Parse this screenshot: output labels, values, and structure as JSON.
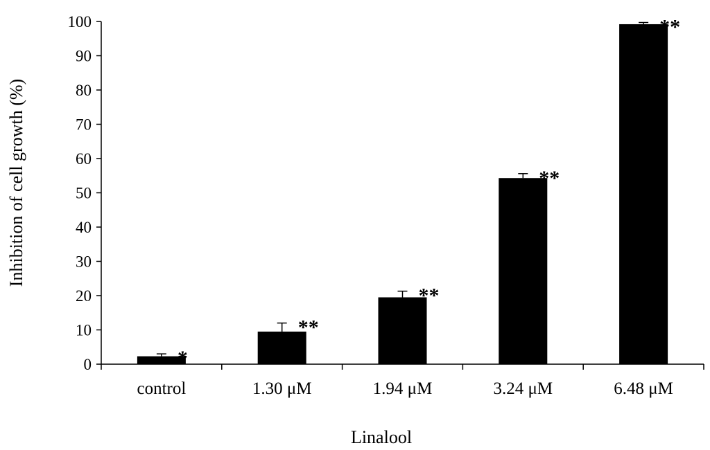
{
  "chart_data": {
    "type": "bar",
    "title": "",
    "xlabel": "Linalool",
    "ylabel": "Inhibition of cell growth (%)",
    "ylim": [
      0,
      100
    ],
    "yticks": [
      0,
      10,
      20,
      30,
      40,
      50,
      60,
      70,
      80,
      90,
      100
    ],
    "categories": [
      "control",
      "1.30 μM",
      "1.94 μM",
      "3.24 μM",
      "6.48 μM"
    ],
    "values": [
      2.3,
      9.5,
      19.5,
      54.3,
      99.2
    ],
    "errors": [
      0.7,
      2.5,
      1.8,
      1.3,
      0.5
    ],
    "significance": [
      "*",
      "**",
      "**",
      "**",
      "**"
    ],
    "bar_color": "#000000",
    "grid": false,
    "legend": "none"
  }
}
